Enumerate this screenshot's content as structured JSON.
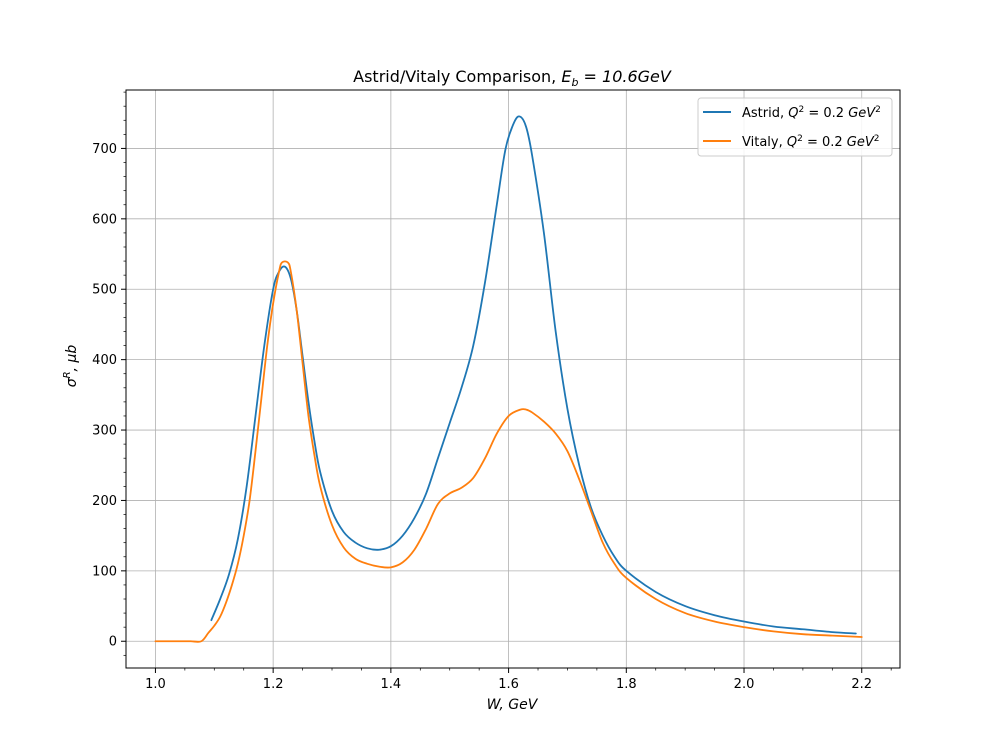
{
  "chart_data": {
    "type": "line",
    "title_parts": {
      "prefix": "Astrid/Vitaly Comparison, ",
      "var": "E",
      "sub": "b",
      "suffix": " = 10.6GeV"
    },
    "xlabel": "W, GeV",
    "ylabel_parts": {
      "var": "σ",
      "sup": "R",
      "suffix": ", μb"
    },
    "xlim": [
      0.95,
      2.265
    ],
    "ylim": [
      -38,
      783
    ],
    "xticks": [
      "1.0",
      "1.2",
      "1.4",
      "1.6",
      "1.8",
      "2.0",
      "2.2"
    ],
    "yticks": [
      "0",
      "100",
      "200",
      "300",
      "400",
      "500",
      "600",
      "700"
    ],
    "grid": true,
    "legend_position": "top-right",
    "series": [
      {
        "name": "Astrid, Q² = 0.2 GeV²",
        "legend_parts": {
          "prefix": "Astrid, ",
          "var": "Q",
          "sup": "2",
          "mid": " = 0.2 ",
          "unit": "GeV",
          "unit_sup": "2"
        },
        "color": "#1f77b4",
        "x": [
          1.095,
          1.11,
          1.125,
          1.14,
          1.155,
          1.17,
          1.185,
          1.2,
          1.21,
          1.22,
          1.23,
          1.24,
          1.25,
          1.26,
          1.27,
          1.28,
          1.3,
          1.32,
          1.34,
          1.36,
          1.38,
          1.4,
          1.42,
          1.44,
          1.46,
          1.48,
          1.5,
          1.52,
          1.54,
          1.56,
          1.58,
          1.595,
          1.61,
          1.62,
          1.63,
          1.64,
          1.66,
          1.68,
          1.7,
          1.72,
          1.74,
          1.76,
          1.78,
          1.8,
          1.85,
          1.9,
          1.95,
          2.0,
          2.05,
          2.1,
          2.15,
          2.19
        ],
        "y": [
          30,
          60,
          95,
          145,
          220,
          320,
          420,
          500,
          525,
          532,
          515,
          470,
          405,
          340,
          285,
          240,
          185,
          155,
          140,
          132,
          130,
          135,
          150,
          175,
          210,
          260,
          310,
          360,
          420,
          510,
          620,
          700,
          738,
          745,
          730,
          690,
          580,
          440,
          330,
          250,
          190,
          150,
          120,
          100,
          70,
          50,
          37,
          28,
          21,
          17,
          13,
          11
        ]
      },
      {
        "name": "Vitaly, Q² = 0.2 GeV²",
        "legend_parts": {
          "prefix": "Vitaly, ",
          "var": "Q",
          "sup": "2",
          "mid": " = 0.2 ",
          "unit": "GeV",
          "unit_sup": "2"
        },
        "color": "#ff7f0e",
        "x": [
          1.0,
          1.02,
          1.04,
          1.06,
          1.078,
          1.09,
          1.1,
          1.11,
          1.12,
          1.13,
          1.14,
          1.15,
          1.16,
          1.17,
          1.18,
          1.19,
          1.2,
          1.21,
          1.215,
          1.225,
          1.23,
          1.24,
          1.25,
          1.26,
          1.27,
          1.28,
          1.3,
          1.32,
          1.34,
          1.36,
          1.38,
          1.4,
          1.42,
          1.44,
          1.46,
          1.48,
          1.5,
          1.52,
          1.54,
          1.56,
          1.58,
          1.6,
          1.62,
          1.63,
          1.64,
          1.66,
          1.68,
          1.7,
          1.72,
          1.74,
          1.76,
          1.78,
          1.8,
          1.85,
          1.9,
          1.95,
          2.0,
          2.05,
          2.1,
          2.15,
          2.2
        ],
        "y": [
          0,
          0,
          0,
          0,
          0,
          12,
          22,
          35,
          55,
          80,
          110,
          150,
          200,
          270,
          345,
          420,
          480,
          525,
          538,
          538,
          525,
          470,
          395,
          320,
          265,
          220,
          165,
          133,
          117,
          110,
          106,
          105,
          112,
          130,
          160,
          195,
          210,
          218,
          232,
          260,
          295,
          320,
          329,
          329,
          325,
          312,
          295,
          270,
          230,
          185,
          140,
          110,
          90,
          60,
          40,
          28,
          20,
          14,
          10,
          8,
          6
        ]
      }
    ]
  }
}
